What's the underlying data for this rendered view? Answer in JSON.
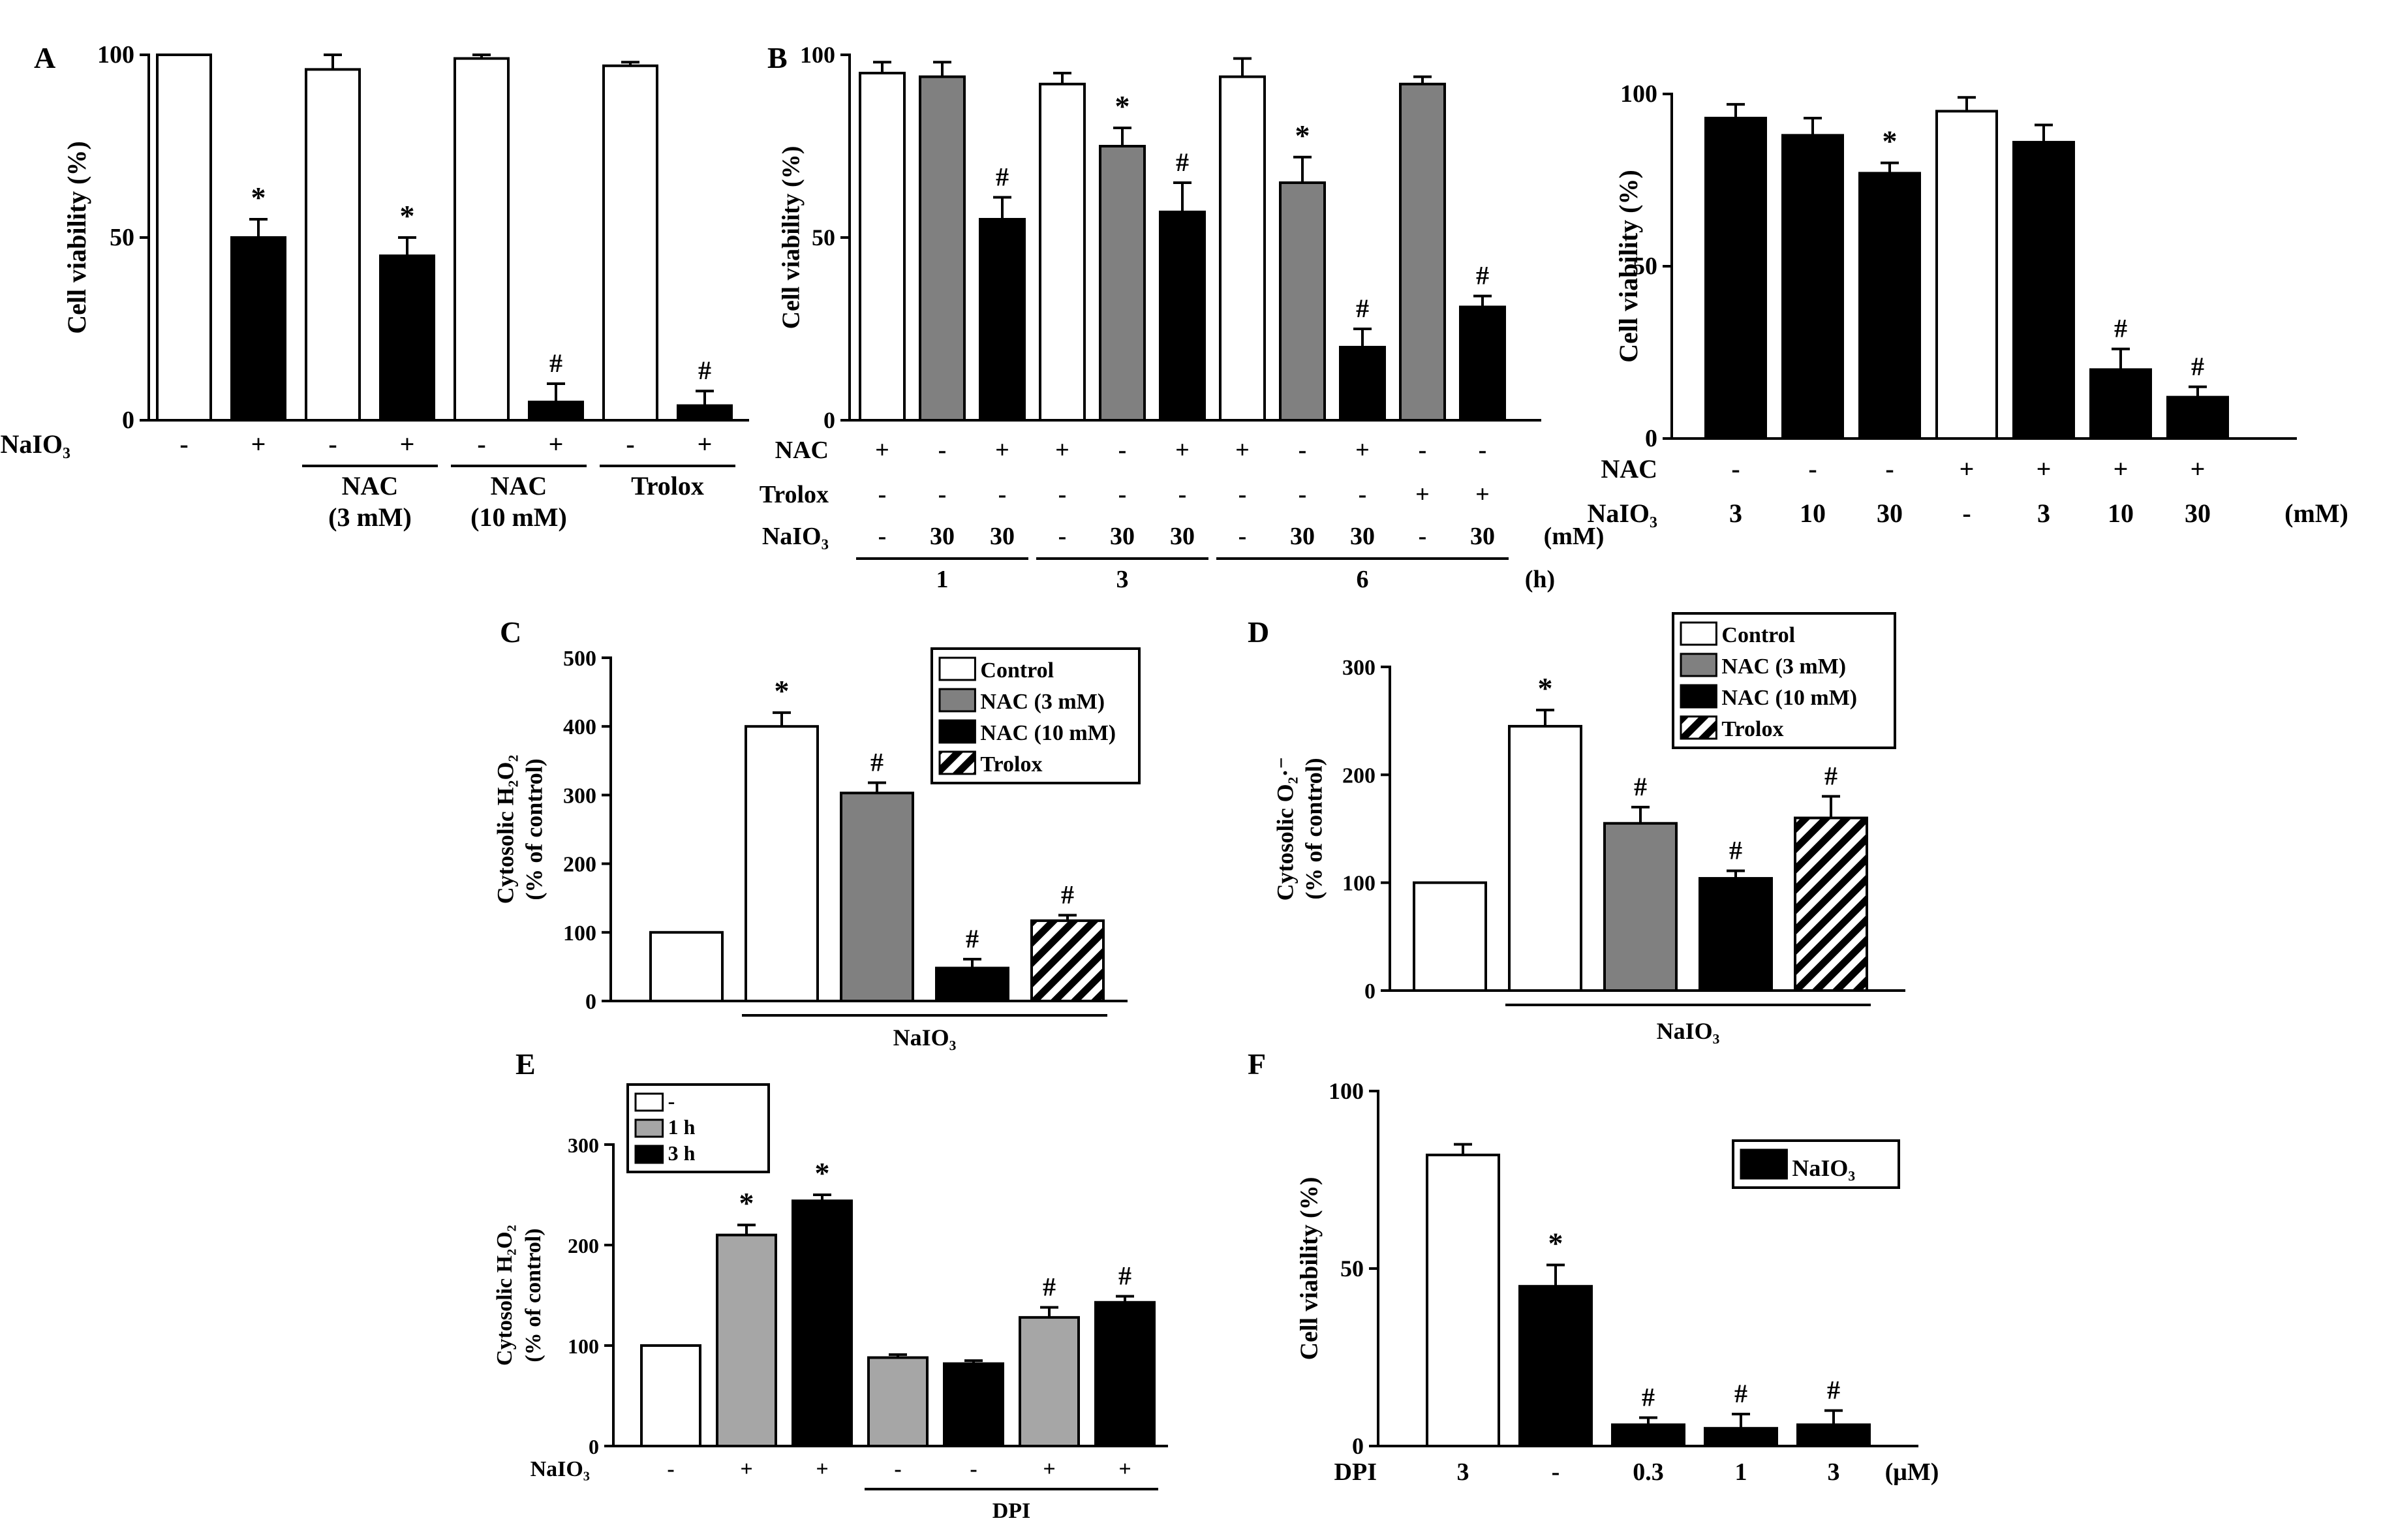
{
  "figure": {
    "colors": {
      "white": "#ffffff",
      "gray": "#808080",
      "lightgray": "#a6a6a6",
      "black": "#000000"
    }
  },
  "chart_data": [
    {
      "id": "A",
      "panel_label": "A",
      "type": "bar",
      "ylabel": "Cell viability (%)",
      "ylim": [
        0,
        100
      ],
      "yticks": [
        "0",
        "50",
        "100"
      ],
      "bars": [
        {
          "value": 100,
          "error": 0,
          "fill": "white",
          "mark": ""
        },
        {
          "value": 50,
          "error": 5,
          "fill": "black",
          "mark": "*"
        },
        {
          "value": 96,
          "error": 4,
          "fill": "white",
          "mark": ""
        },
        {
          "value": 45,
          "error": 5,
          "fill": "black",
          "mark": "*"
        },
        {
          "value": 99,
          "error": 1,
          "fill": "white",
          "mark": ""
        },
        {
          "value": 5,
          "error": 5,
          "fill": "black",
          "mark": "#"
        },
        {
          "value": 97,
          "error": 1,
          "fill": "white",
          "mark": ""
        },
        {
          "value": 4,
          "error": 4,
          "fill": "black",
          "mark": "#"
        }
      ],
      "rows": [
        {
          "label": "NaIO₃",
          "cells": [
            "-",
            "+",
            "-",
            "+",
            "-",
            "+",
            "-",
            "+"
          ]
        }
      ],
      "groups": [
        {
          "from": 2,
          "to": 3,
          "lines": [
            "NAC",
            "(3 mM)"
          ]
        },
        {
          "from": 4,
          "to": 5,
          "lines": [
            "NAC",
            "(10 mM)"
          ]
        },
        {
          "from": 6,
          "to": 7,
          "lines": [
            "Trolox"
          ]
        }
      ],
      "legend": []
    },
    {
      "id": "B",
      "panel_label": "B",
      "type": "bar",
      "ylabel": "Cell viability (%)",
      "ylim": [
        0,
        100
      ],
      "yticks": [
        "0",
        "50",
        "100"
      ],
      "bars": [
        {
          "value": 95,
          "error": 3,
          "fill": "white",
          "mark": ""
        },
        {
          "value": 94,
          "error": 4,
          "fill": "gray",
          "mark": ""
        },
        {
          "value": 55,
          "error": 6,
          "fill": "black",
          "mark": "#"
        },
        {
          "value": 92,
          "error": 3,
          "fill": "white",
          "mark": ""
        },
        {
          "value": 75,
          "error": 5,
          "fill": "gray",
          "mark": "*"
        },
        {
          "value": 57,
          "error": 8,
          "fill": "black",
          "mark": "#"
        },
        {
          "value": 94,
          "error": 5,
          "fill": "white",
          "mark": ""
        },
        {
          "value": 65,
          "error": 7,
          "fill": "gray",
          "mark": "*"
        },
        {
          "value": 20,
          "error": 5,
          "fill": "black",
          "mark": "#"
        },
        {
          "value": 92,
          "error": 2,
          "fill": "gray",
          "mark": ""
        },
        {
          "value": 31,
          "error": 3,
          "fill": "black",
          "mark": "#"
        }
      ],
      "rows": [
        {
          "label": "NAC",
          "cells": [
            "+",
            "-",
            "+",
            "+",
            "-",
            "+",
            "+",
            "-",
            "+",
            "-",
            "-"
          ]
        },
        {
          "label": "Trolox",
          "cells": [
            "-",
            "-",
            "-",
            "-",
            "-",
            "-",
            "-",
            "-",
            "-",
            "+",
            "+"
          ]
        },
        {
          "label": "NaIO₃",
          "cells": [
            "-",
            "30",
            "30",
            "-",
            "30",
            "30",
            "-",
            "30",
            "30",
            "-",
            "30"
          ],
          "unit": "(mM)"
        }
      ],
      "groups": [
        {
          "from": 0,
          "to": 2,
          "lines": [
            "1"
          ]
        },
        {
          "from": 3,
          "to": 5,
          "lines": [
            "3"
          ]
        },
        {
          "from": 6,
          "to": 10,
          "lines": [
            "6"
          ],
          "unit": "(h)"
        }
      ],
      "legend": []
    },
    {
      "id": "B2",
      "panel_label": "",
      "type": "bar",
      "ylabel": "Cell viability (%)",
      "ylim": [
        0,
        100
      ],
      "yticks": [
        "0",
        "50",
        "100"
      ],
      "bars": [
        {
          "value": 93,
          "error": 4,
          "fill": "black",
          "mark": ""
        },
        {
          "value": 88,
          "error": 5,
          "fill": "black",
          "mark": ""
        },
        {
          "value": 77,
          "error": 3,
          "fill": "black",
          "mark": "*"
        },
        {
          "value": 95,
          "error": 4,
          "fill": "white",
          "mark": ""
        },
        {
          "value": 86,
          "error": 5,
          "fill": "black",
          "mark": ""
        },
        {
          "value": 20,
          "error": 6,
          "fill": "black",
          "mark": "#"
        },
        {
          "value": 12,
          "error": 3,
          "fill": "black",
          "mark": "#"
        }
      ],
      "rows": [
        {
          "label": "NAC",
          "cells": [
            "-",
            "-",
            "-",
            "+",
            "+",
            "+",
            "+"
          ]
        },
        {
          "label": "NaIO₃",
          "cells": [
            "3",
            "10",
            "30",
            "-",
            "3",
            "10",
            "30"
          ],
          "unit": "(mM)"
        }
      ],
      "groups": [],
      "legend": []
    },
    {
      "id": "C",
      "panel_label": "C",
      "type": "bar",
      "ylabel": [
        "Cytosolic H₂O₂",
        "(% of control)"
      ],
      "ylim": [
        0,
        500
      ],
      "yticks": [
        "0",
        "100",
        "200",
        "300",
        "400",
        "500"
      ],
      "bars": [
        {
          "value": 100,
          "error": 0,
          "fill": "white",
          "mark": ""
        },
        {
          "value": 400,
          "error": 20,
          "fill": "white",
          "mark": "*"
        },
        {
          "value": 303,
          "error": 15,
          "fill": "gray",
          "mark": "#"
        },
        {
          "value": 48,
          "error": 13,
          "fill": "black",
          "mark": "#"
        },
        {
          "value": 117,
          "error": 8,
          "fill": "hatch",
          "mark": "#"
        }
      ],
      "rows": [],
      "groups": [
        {
          "from": 1,
          "to": 4,
          "lines": [
            "NaIO₃"
          ]
        }
      ],
      "legend": [
        {
          "label": "Control",
          "fill": "white"
        },
        {
          "label": "NAC (3 mM)",
          "fill": "gray"
        },
        {
          "label": "NAC (10 mM)",
          "fill": "black"
        },
        {
          "label": "Trolox",
          "fill": "hatch"
        }
      ]
    },
    {
      "id": "D",
      "panel_label": "D",
      "type": "bar",
      "ylabel": [
        "Cytosolic O₂·⁻",
        "(% of control)"
      ],
      "ylim": [
        0,
        300
      ],
      "yticks": [
        "0",
        "100",
        "200",
        "300"
      ],
      "bars": [
        {
          "value": 100,
          "error": 0,
          "fill": "white",
          "mark": ""
        },
        {
          "value": 245,
          "error": 15,
          "fill": "white",
          "mark": "*"
        },
        {
          "value": 155,
          "error": 15,
          "fill": "gray",
          "mark": "#"
        },
        {
          "value": 104,
          "error": 7,
          "fill": "black",
          "mark": "#"
        },
        {
          "value": 160,
          "error": 20,
          "fill": "hatch",
          "mark": "#"
        }
      ],
      "rows": [],
      "groups": [
        {
          "from": 1,
          "to": 4,
          "lines": [
            "NaIO₃"
          ]
        }
      ],
      "legend": [
        {
          "label": "Control",
          "fill": "white"
        },
        {
          "label": "NAC (3 mM)",
          "fill": "gray"
        },
        {
          "label": "NAC (10 mM)",
          "fill": "black"
        },
        {
          "label": "Trolox",
          "fill": "hatch"
        }
      ]
    },
    {
      "id": "E",
      "panel_label": "E",
      "type": "bar",
      "ylabel": [
        "Cytosolic H₂O₂",
        "(% of control)"
      ],
      "ylim": [
        0,
        300
      ],
      "yticks": [
        "0",
        "100",
        "200",
        "300"
      ],
      "bars": [
        {
          "value": 100,
          "error": 0,
          "fill": "white",
          "mark": ""
        },
        {
          "value": 210,
          "error": 10,
          "fill": "lightgray",
          "mark": "*"
        },
        {
          "value": 244,
          "error": 6,
          "fill": "black",
          "mark": "*"
        },
        {
          "value": 88,
          "error": 3,
          "fill": "lightgray",
          "mark": ""
        },
        {
          "value": 82,
          "error": 3,
          "fill": "black",
          "mark": ""
        },
        {
          "value": 128,
          "error": 10,
          "fill": "lightgray",
          "mark": "#"
        },
        {
          "value": 143,
          "error": 6,
          "fill": "black",
          "mark": "#"
        }
      ],
      "rows": [
        {
          "label": "NaIO₃",
          "cells": [
            "-",
            "+",
            "+",
            "-",
            "-",
            "+",
            "+"
          ]
        }
      ],
      "groups": [
        {
          "from": 3,
          "to": 6,
          "lines": [
            "DPI"
          ]
        }
      ],
      "legend": [
        {
          "label": "-",
          "fill": "white"
        },
        {
          "label": "1 h",
          "fill": "lightgray"
        },
        {
          "label": "3 h",
          "fill": "black"
        }
      ]
    },
    {
      "id": "F",
      "panel_label": "F",
      "type": "bar",
      "ylabel": "Cell viability (%)",
      "ylim": [
        0,
        100
      ],
      "yticks": [
        "0",
        "50",
        "100"
      ],
      "bars": [
        {
          "value": 82,
          "error": 3,
          "fill": "white",
          "mark": ""
        },
        {
          "value": 45,
          "error": 6,
          "fill": "black",
          "mark": "*"
        },
        {
          "value": 6,
          "error": 2,
          "fill": "black",
          "mark": "#"
        },
        {
          "value": 5,
          "error": 4,
          "fill": "black",
          "mark": "#"
        },
        {
          "value": 6,
          "error": 4,
          "fill": "black",
          "mark": "#"
        }
      ],
      "rows": [
        {
          "label": "DPI",
          "cells": [
            "3",
            "-",
            "0.3",
            "1",
            "3"
          ],
          "unit": "(μM)"
        }
      ],
      "groups": [],
      "legend": [
        {
          "label": "NaIO₃",
          "fill": "black"
        }
      ]
    }
  ]
}
